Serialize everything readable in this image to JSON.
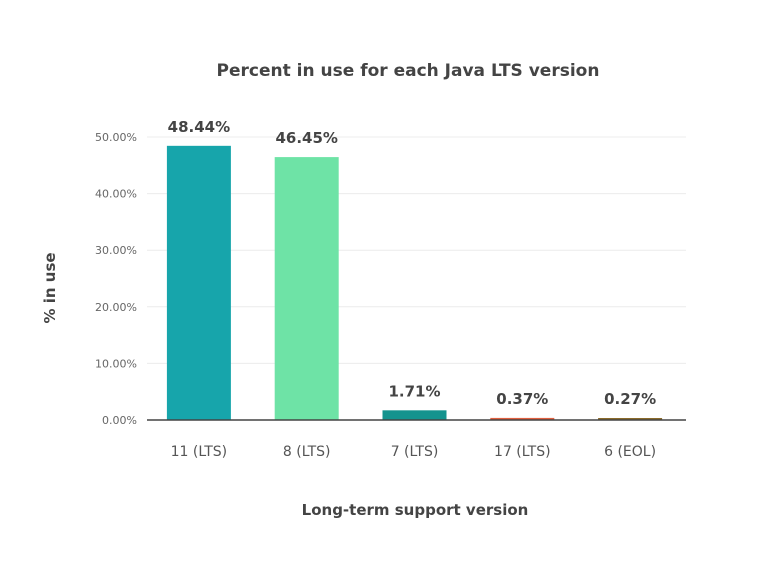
{
  "chart_data": {
    "type": "bar",
    "title": "Percent in use for each Java LTS version",
    "xlabel": "Long-term support version",
    "ylabel": "% in use",
    "categories": [
      "11 (LTS)",
      "8 (LTS)",
      "7 (LTS)",
      "17 (LTS)",
      "6 (EOL)"
    ],
    "values": [
      48.44,
      46.45,
      1.71,
      0.37,
      0.27
    ],
    "value_labels": [
      "48.44%",
      "46.45%",
      "1.71%",
      "0.37%",
      "0.27%"
    ],
    "bar_colors": [
      "#17a5ab",
      "#6ee3a6",
      "#14938e",
      "#e0603f",
      "#8a6a2a"
    ],
    "ylim": [
      0,
      50
    ],
    "yticks": [
      0,
      10,
      20,
      30,
      40,
      50
    ],
    "ytick_labels": [
      "0.00%",
      "10.00%",
      "20.00%",
      "30.00%",
      "40.00%",
      "50.00%"
    ],
    "grid": true,
    "legend": "none"
  }
}
